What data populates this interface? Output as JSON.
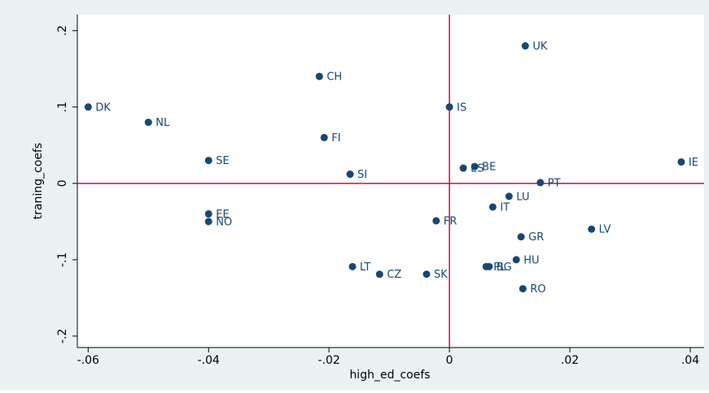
{
  "chart_data": {
    "type": "scatter",
    "x_label": "high_ed_coefs",
    "y_label": "traning_coefs",
    "color": "#1a476f",
    "ref_color": "#c0143c",
    "xline": 0,
    "yline": 0,
    "xlim": [
      -0.0618,
      0.0423
    ],
    "ylim": [
      -0.215,
      0.221
    ],
    "xticks": [
      {
        "value": -0.06,
        "label": "-.06"
      },
      {
        "value": -0.04,
        "label": "-.04"
      },
      {
        "value": -0.02,
        "label": "-.02"
      },
      0,
      {
        "value": 0.02,
        "label": ".02"
      },
      {
        "value": 0.04,
        "label": ".04"
      }
    ],
    "yticks": [
      {
        "value": 0.2,
        "label": ".2"
      },
      {
        "value": 0.1,
        "label": ".1"
      },
      0,
      {
        "value": -0.1,
        "label": "-.1"
      },
      {
        "value": -0.2,
        "label": "-.2"
      }
    ],
    "labels": [
      "DK",
      "NL",
      "CH",
      "FI",
      "SE",
      "SI",
      "UK",
      "IS",
      "ES",
      "BE",
      "IE",
      "PT",
      "LU",
      "IT",
      "FR",
      "EE",
      "NO",
      "GR",
      "LV",
      "HU",
      "LT",
      "CZ",
      "SK",
      "PL",
      "BG",
      "RO"
    ],
    "x": [
      -0.06,
      -0.05,
      -0.0216,
      -0.0208,
      -0.04,
      -0.0165,
      0.0126,
      0,
      0.0023,
      0.0042,
      0.0385,
      0.0151,
      0.0099,
      0.0072,
      -0.0022,
      -0.04,
      -0.04,
      0.0119,
      0.0236,
      0.0111,
      -0.0161,
      -0.0116,
      -0.0038,
      0.0061,
      0.0066,
      0.0122
    ],
    "y": [
      0.1,
      0.08,
      0.14,
      0.06,
      0.03,
      0.012,
      0.18,
      0.1,
      0.02,
      0.022,
      0.028,
      0.001,
      -0.017,
      -0.031,
      -0.049,
      -0.04,
      -0.05,
      -0.07,
      -0.06,
      -0.1,
      -0.109,
      -0.119,
      -0.119,
      -0.109,
      -0.109,
      -0.138
    ]
  }
}
